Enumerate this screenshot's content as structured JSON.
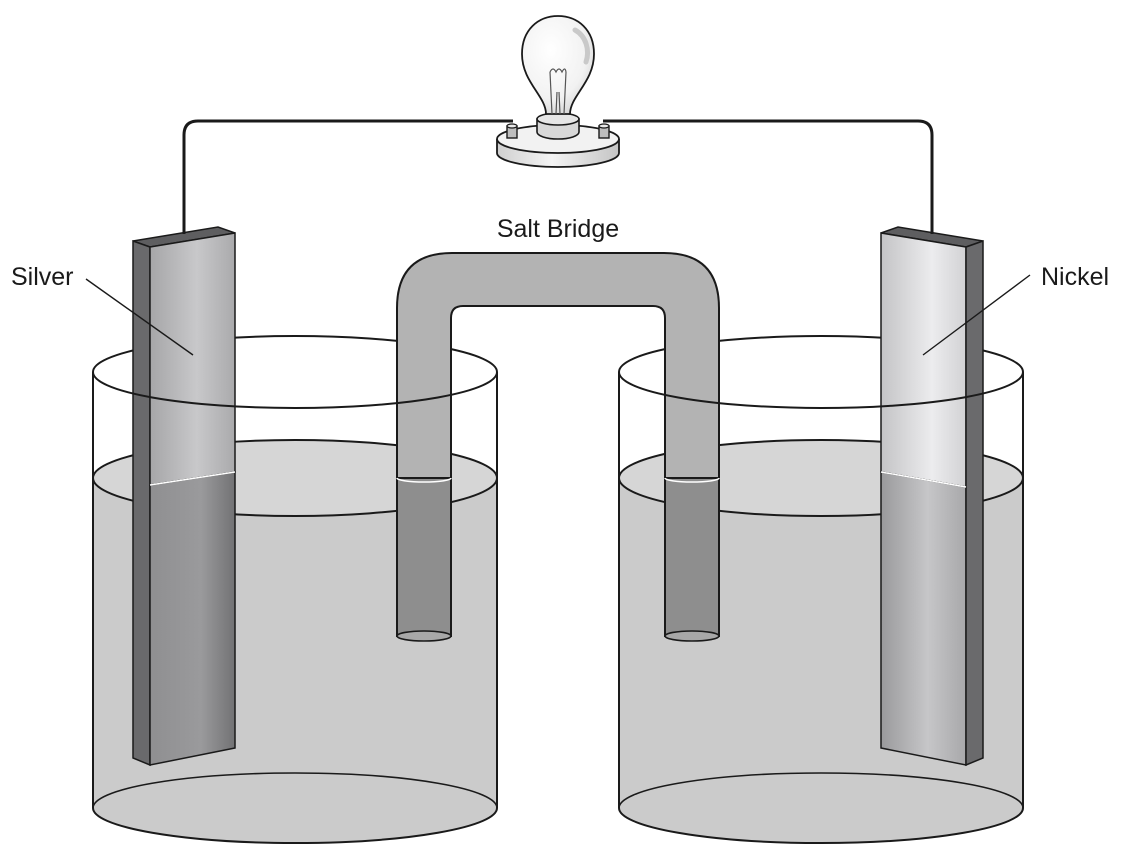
{
  "labels": {
    "left_electrode": "Silver",
    "right_electrode": "Nickel",
    "bridge": "Salt Bridge"
  },
  "colors": {
    "solution": "#cbcbcb",
    "tube": "#b3b3b3",
    "tube_submerged": "#8e8e8e",
    "electrode_dark": "#7a7a7a",
    "outline": "#1a1a1a"
  }
}
